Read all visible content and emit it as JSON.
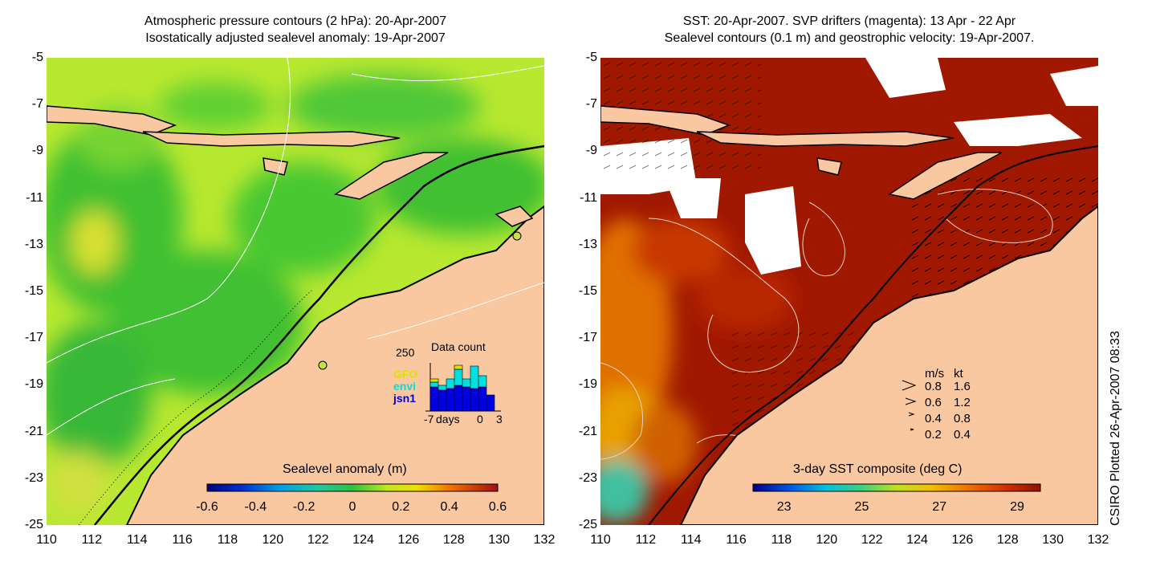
{
  "left_panel": {
    "title_line1": "Atmospheric pressure contours (2 hPa): 20-Apr-2007",
    "title_line2": "Isostatically adjusted sealevel anomaly: 19-Apr-2007",
    "colorbar": {
      "label": "Sealevel anomaly (m)",
      "ticks": [
        "-0.6",
        "-0.4",
        "-0.2",
        "0",
        "0.2",
        "0.4",
        "0.6"
      ]
    },
    "data_count": {
      "title": "Data count",
      "ymax_label": "250",
      "legend": [
        {
          "name": "GFO",
          "color": "#e0e000"
        },
        {
          "name": "envi",
          "color": "#00e0e0"
        },
        {
          "name": "jsn1",
          "color": "#0000e0"
        }
      ],
      "x_left": "-7",
      "x_unit": "days",
      "x_mid": "0",
      "x_right": "3"
    }
  },
  "right_panel": {
    "title_line1": "SST: 20-Apr-2007. SVP drifters (magenta): 13 Apr - 22 Apr",
    "title_line2": "Sealevel contours (0.1 m) and geostrophic velocity: 19-Apr-2007.",
    "colorbar": {
      "label": "3-day SST composite (deg C)",
      "ticks": [
        "23",
        "25",
        "27",
        "29"
      ]
    },
    "speed_legend": {
      "header_ms": "m/s",
      "header_kt": "kt",
      "rows": [
        {
          "ms": "0.8",
          "kt": "1.6"
        },
        {
          "ms": "0.6",
          "kt": "1.2"
        },
        {
          "ms": "0.4",
          "kt": "0.8"
        },
        {
          "ms": "0.2",
          "kt": "0.4"
        }
      ]
    }
  },
  "axes": {
    "y_ticks": [
      "-5",
      "-7",
      "-9",
      "-11",
      "-13",
      "-15",
      "-17",
      "-19",
      "-21",
      "-23",
      "-25"
    ],
    "x_ticks": [
      "110",
      "112",
      "114",
      "116",
      "118",
      "120",
      "122",
      "124",
      "126",
      "128",
      "130",
      "132"
    ]
  },
  "stamp": "CSIRO Plotted 26-Apr-2007 08:33",
  "colors": {
    "land": "#f9c8a0",
    "sst_hot": "#a01800",
    "anomaly_green": "#40c030",
    "anomaly_yellowgreen": "#b8e830"
  }
}
